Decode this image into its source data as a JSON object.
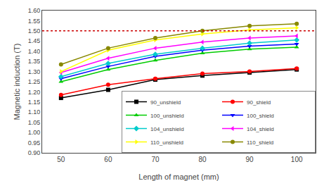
{
  "chart_data": {
    "type": "line",
    "xlabel": "Length of magnet (mm)",
    "ylabel": "Magnetic induction (T)",
    "x": [
      50,
      60,
      70,
      80,
      90,
      100
    ],
    "series": [
      {
        "name": "90_unshield",
        "color": "#000000",
        "marker": "square",
        "line_style": "solid",
        "values": [
          1.17,
          1.21,
          1.26,
          1.28,
          1.295,
          1.31
        ]
      },
      {
        "name": "90_shield",
        "color": "#ff0000",
        "marker": "circle",
        "line_style": "solid",
        "values": [
          1.185,
          1.235,
          1.265,
          1.29,
          1.3,
          1.315
        ]
      },
      {
        "name": "100_unshield",
        "color": "#00cc00",
        "marker": "triangle-up",
        "line_style": "solid",
        "values": [
          1.25,
          1.31,
          1.355,
          1.39,
          1.41,
          1.42
        ]
      },
      {
        "name": "100_shield",
        "color": "#0000ff",
        "marker": "triangle-down",
        "line_style": "solid",
        "values": [
          1.265,
          1.325,
          1.375,
          1.405,
          1.425,
          1.435
        ]
      },
      {
        "name": "104_unshield",
        "color": "#00cccc",
        "marker": "diamond",
        "line_style": "solid",
        "values": [
          1.275,
          1.34,
          1.385,
          1.415,
          1.44,
          1.455
        ]
      },
      {
        "name": "104_shield",
        "color": "#ff00ff",
        "marker": "triangle-left",
        "line_style": "solid",
        "values": [
          1.295,
          1.365,
          1.415,
          1.445,
          1.465,
          1.475
        ]
      },
      {
        "name": "110_unshield",
        "color": "#ffff00",
        "marker": "triangle-right",
        "line_style": "solid",
        "values": [
          1.3,
          1.405,
          1.455,
          1.485,
          1.505,
          1.515
        ]
      },
      {
        "name": "110_shield",
        "color": "#888800",
        "marker": "circle",
        "line_style": "solid",
        "values": [
          1.335,
          1.415,
          1.465,
          1.5,
          1.525,
          1.535
        ]
      }
    ],
    "reference_lines": [
      {
        "y": 1.5,
        "color": "#cc0000",
        "line_style": "dotted"
      }
    ],
    "xlim": [
      46,
      104
    ],
    "xticks": [
      50,
      60,
      70,
      80,
      90,
      100
    ],
    "ylim": [
      0.9,
      1.6
    ],
    "yticks": [
      {
        "value": 0.9,
        "label": "0.90"
      },
      0.95,
      {
        "value": 1.0,
        "label": "1.00"
      },
      1.05,
      {
        "value": 1.1,
        "label": "1.10"
      },
      1.15,
      {
        "value": 1.2,
        "label": "1.20"
      },
      1.25,
      {
        "value": 1.3,
        "label": "1.30"
      },
      1.35,
      {
        "value": 1.4,
        "label": "1.40"
      },
      1.45,
      {
        "value": 1.5,
        "label": "1.50"
      },
      1.55,
      {
        "value": 1.6,
        "label": "1.60"
      }
    ],
    "grid": false,
    "legend": "lower right"
  }
}
